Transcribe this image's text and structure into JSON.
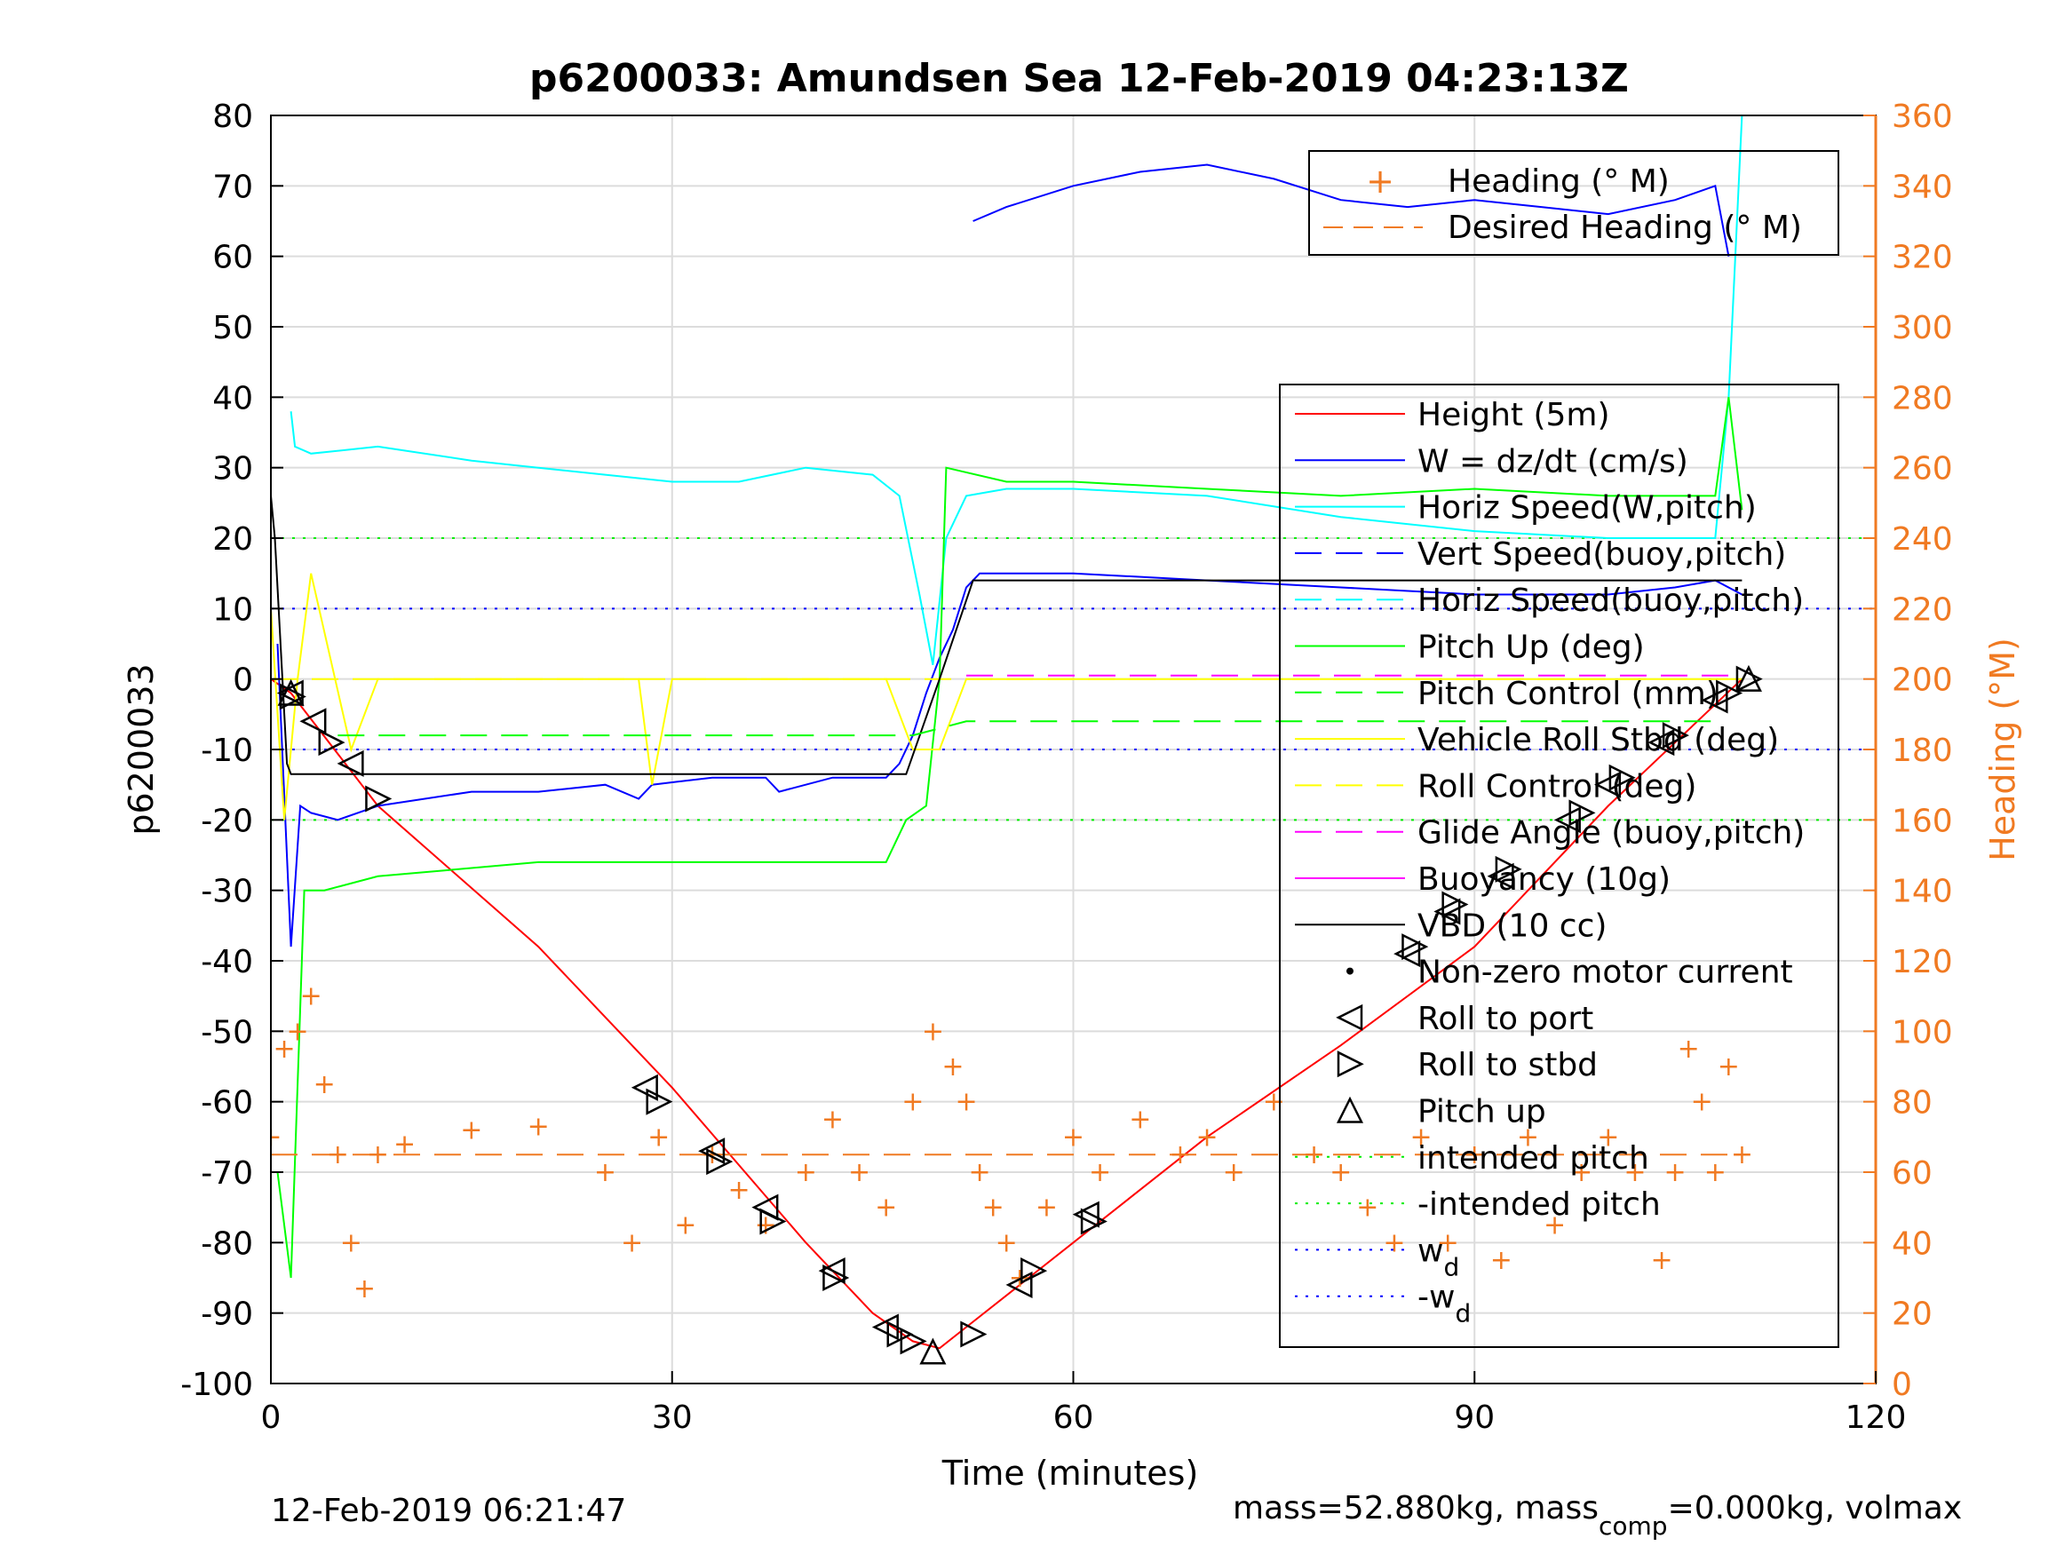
{
  "chart_data": {
    "type": "line",
    "title": "p6200033: Amundsen Sea 12-Feb-2019 04:23:13Z",
    "xlabel": "Time (minutes)",
    "ylabel": "p6200033",
    "y2label": "Heading (°M)",
    "xlim": [
      0,
      120
    ],
    "ylim": [
      -100,
      80
    ],
    "y2lim": [
      0,
      360
    ],
    "x_ticks": [
      "0",
      "30",
      "60",
      "90",
      "120"
    ],
    "y_ticks": [
      "80",
      "70",
      "60",
      "50",
      "40",
      "30",
      "20",
      "10",
      "0",
      "-10",
      "-20",
      "-30",
      "-40",
      "-50",
      "-60",
      "-70",
      "-80",
      "-90",
      "-100"
    ],
    "y2_ticks": [
      "360",
      "340",
      "320",
      "300",
      "280",
      "260",
      "240",
      "220",
      "200",
      "180",
      "160",
      "140",
      "120",
      "100",
      "80",
      "60",
      "40",
      "20",
      "0"
    ],
    "grid": true,
    "colors": {
      "height": "#ff0000",
      "w": "#0000ff",
      "horiz_speed": "#00ffff",
      "pitch": "#00ff00",
      "roll": "#ffff00",
      "glide": "#ff00ff",
      "vbd": "#000000",
      "heading": "#f07a22"
    },
    "legend_top": {
      "position": "top-right",
      "entries": [
        "Heading (° M)",
        "Desired Heading (° M)"
      ]
    },
    "legend_main": {
      "position": "right",
      "entries": [
        "Height (5m)",
        "W = dz/dt (cm/s)",
        "Horiz Speed(W,pitch)",
        "Vert Speed(buoy,pitch)",
        "Horiz Speed(buoy,pitch)",
        "Pitch Up (deg)",
        "Pitch Control (mm)",
        "Vehicle Roll Stbd (deg)",
        "Roll Control (deg)",
        "Glide Angle (buoy,pitch)",
        "Buoyancy (10g)",
        "VBD (10 cc)",
        "Non-zero motor current",
        "Roll to port",
        "Roll to stbd",
        "Pitch up",
        "intended pitch",
        "-intended pitch",
        "w",
        "-w"
      ],
      "subscripts": {
        "w": "d",
        "-w": "d"
      }
    },
    "series": [
      {
        "name": "Height (5m)",
        "x": [
          0,
          1.5,
          8,
          20,
          30,
          40,
          45,
          48,
          50,
          52,
          56,
          60,
          70,
          80,
          90,
          100,
          110
        ],
        "y": [
          0,
          -2,
          -18,
          -38,
          -58,
          -80,
          -90,
          -94,
          -95,
          -92,
          -86,
          -80,
          -65,
          -52,
          -38,
          -18,
          0
        ]
      },
      {
        "name": "W = dz/dt (cm/s)",
        "x": [
          0.5,
          1.5,
          2.2,
          3,
          5,
          8,
          15,
          20,
          25,
          27.5,
          28.5,
          33,
          37,
          38,
          42,
          46,
          47,
          48,
          49,
          50,
          51,
          52,
          53,
          60,
          70,
          80,
          90,
          100,
          105,
          108,
          110
        ],
        "y": [
          5,
          -38,
          -18,
          -19,
          -20,
          -18,
          -16,
          -16,
          -15,
          -17,
          -15,
          -14,
          -14,
          -16,
          -14,
          -14,
          -12,
          -8,
          -2,
          3,
          7,
          13,
          15,
          15,
          14,
          13,
          12,
          12,
          13,
          14,
          12
        ]
      },
      {
        "name": "Horiz Speed(W,pitch)",
        "x": [
          1.5,
          1.8,
          3,
          8,
          15,
          20,
          25,
          30,
          35,
          40,
          45,
          47,
          48.5,
          49.5,
          50.5,
          52,
          55,
          60,
          70,
          80,
          90,
          100,
          108,
          109,
          110
        ],
        "y": [
          38,
          33,
          32,
          33,
          31,
          30,
          29,
          28,
          28,
          30,
          29,
          26,
          12,
          2,
          20,
          26,
          27,
          27,
          26,
          23,
          21,
          20,
          20,
          40,
          80
        ]
      },
      {
        "name": "Pitch Up (deg)",
        "x": [
          0.5,
          1.5,
          2.5,
          4,
          8,
          20,
          30,
          40,
          46,
          47.5,
          49,
          50,
          50.5,
          55,
          60,
          70,
          80,
          90,
          100,
          108,
          109,
          110
        ],
        "y": [
          -70,
          -85,
          -30,
          -30,
          -28,
          -26,
          -26,
          -26,
          -26,
          -20,
          -18,
          0,
          30,
          28,
          28,
          27,
          26,
          27,
          26,
          26,
          40,
          24
        ]
      },
      {
        "name": "Vehicle Roll Stbd (deg)",
        "x": [
          0,
          1,
          2,
          3,
          6,
          8,
          20,
          27.5,
          28.5,
          30,
          33,
          40,
          46,
          48,
          50,
          52,
          60,
          70,
          80,
          100,
          110
        ],
        "y": [
          10,
          -20,
          0,
          15,
          -10,
          0,
          0,
          0,
          -15,
          0,
          0,
          0,
          0,
          -10,
          -10,
          0,
          0,
          0,
          0,
          0,
          0
        ]
      },
      {
        "name": "Roll Control (deg)",
        "x": [
          0,
          110
        ],
        "y": [
          0,
          0
        ]
      },
      {
        "name": "Glide Angle (buoy,pitch)",
        "x": [
          52,
          110
        ],
        "y": [
          0.5,
          0.5
        ]
      },
      {
        "name": "VBD (10 cc)",
        "x": [
          0,
          0.3,
          1.2,
          1.5,
          47.5,
          50,
          52.5,
          110
        ],
        "y": [
          26,
          20,
          -12,
          -13.5,
          -13.5,
          0,
          14,
          14
        ]
      },
      {
        "name": "Pitch Control (mm)",
        "x": [
          5,
          48,
          52,
          108
        ],
        "y": [
          -8,
          -8,
          -6,
          -6
        ]
      },
      {
        "name": "Vert Speed(buoy,pitch)",
        "x": [
          52.5,
          55,
          60,
          65,
          70,
          75,
          80,
          85,
          90,
          95,
          100,
          105,
          108,
          109
        ],
        "y": [
          65,
          67,
          70,
          72,
          73,
          71,
          68,
          67,
          68,
          67,
          66,
          68,
          70,
          60
        ]
      },
      {
        "name": "Heading (° M)",
        "x": [
          0,
          1,
          2,
          3,
          4,
          5,
          6,
          7,
          8,
          10,
          15,
          20,
          25,
          27,
          29,
          31,
          33,
          35,
          37,
          40,
          42,
          44,
          46,
          48,
          49.5,
          51,
          52,
          53,
          54,
          55,
          56,
          58,
          60,
          62,
          65,
          68,
          70,
          72,
          75,
          78,
          80,
          82,
          84,
          86,
          88,
          90,
          92,
          94,
          96,
          98,
          100,
          102,
          104,
          105,
          106,
          107,
          108,
          109,
          110
        ],
        "y": [
          70,
          95,
          100,
          110,
          85,
          65,
          40,
          27,
          65,
          68,
          72,
          73,
          60,
          40,
          70,
          45,
          65,
          55,
          45,
          60,
          75,
          60,
          50,
          80,
          100,
          90,
          80,
          60,
          50,
          40,
          30,
          50,
          70,
          60,
          75,
          65,
          70,
          60,
          80,
          65,
          60,
          50,
          40,
          70,
          40,
          65,
          35,
          70,
          45,
          60,
          70,
          60,
          35,
          60,
          95,
          80,
          60,
          90,
          65
        ]
      },
      {
        "name": "Desired Heading (° M)",
        "x": [
          0,
          110
        ],
        "y": [
          65,
          65
        ]
      }
    ],
    "reference_lines": {
      "intended_pitch": 20,
      "neg_intended_pitch": -20,
      "wd": 10,
      "neg_wd": -10
    },
    "markers": {
      "roll_to_port": [
        [
          1.5,
          -2
        ],
        [
          3.2,
          -6
        ],
        [
          6,
          -12
        ],
        [
          28,
          -58
        ],
        [
          33,
          -67
        ],
        [
          37,
          -75
        ],
        [
          42,
          -84
        ],
        [
          46,
          -92
        ],
        [
          56,
          -86
        ],
        [
          61,
          -76
        ],
        [
          85,
          -39
        ],
        [
          88,
          -33
        ],
        [
          92,
          -28
        ],
        [
          97,
          -20
        ],
        [
          100,
          -15
        ],
        [
          104,
          -9
        ],
        [
          108,
          -3
        ]
      ],
      "roll_to_stbd": [
        [
          1.6,
          -2.5
        ],
        [
          4.5,
          -9
        ],
        [
          8,
          -17
        ],
        [
          29,
          -60
        ],
        [
          33.5,
          -68.5
        ],
        [
          37.5,
          -77
        ],
        [
          42.2,
          -85
        ],
        [
          47,
          -93
        ],
        [
          48,
          -94
        ],
        [
          52.5,
          -93
        ],
        [
          57,
          -84
        ],
        [
          61.5,
          -77
        ],
        [
          85.5,
          -38
        ],
        [
          88.5,
          -32
        ],
        [
          92.5,
          -27
        ],
        [
          98,
          -19
        ],
        [
          101,
          -14
        ],
        [
          105,
          -8
        ],
        [
          109,
          -2
        ],
        [
          110.5,
          0
        ]
      ],
      "pitch_up": [
        [
          1.5,
          -2
        ],
        [
          49.5,
          -95.5
        ],
        [
          110.5,
          0
        ]
      ]
    },
    "footer": {
      "timestamp": "12-Feb-2019 06:21:47",
      "mass_prefix": "mass=52.880kg, mass",
      "mass_sub": "comp",
      "mass_suffix": "=0.000kg, volmax"
    }
  }
}
